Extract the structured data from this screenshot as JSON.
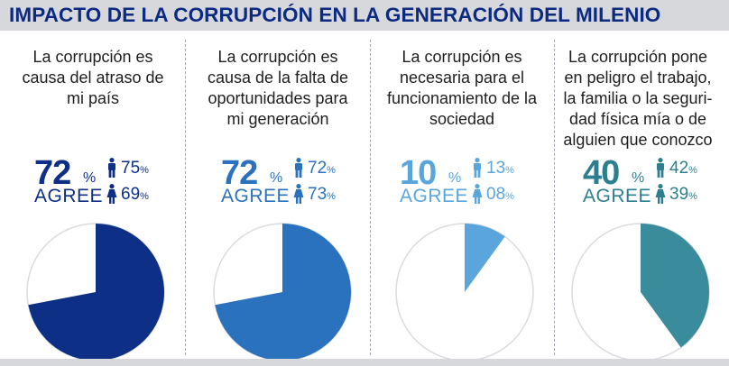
{
  "title": "IMPACTO DE LA CORRUPCIÓN EN LA GENERACIÓN DEL MILENIO",
  "percent_symbol": "%",
  "chart_data": [
    {
      "type": "pie",
      "statement_lines": [
        "La corrupción es",
        "causa del atraso  de",
        "mi país"
      ],
      "agree_value": "72",
      "agree_label": "AGREE",
      "male_value": "75",
      "female_value": "69",
      "values": [
        72,
        28
      ],
      "color": "#0d2f86",
      "text_color": "#0d2f86"
    },
    {
      "type": "pie",
      "statement_lines": [
        "La corrupción es",
        "causa de la falta de",
        "oportunidades para",
        "mi generación"
      ],
      "agree_value": "72",
      "agree_label": "AGREE",
      "male_value": "72",
      "female_value": "73",
      "values": [
        72,
        28
      ],
      "color": "#2a72bd",
      "text_color": "#2a72bd"
    },
    {
      "type": "pie",
      "statement_lines": [
        "La corrupción es",
        "necesaria para el",
        "funcionamiento de la",
        "sociedad"
      ],
      "agree_value": "10",
      "agree_label": "AGREE",
      "male_value": "13",
      "female_value": "08",
      "values": [
        10,
        90
      ],
      "color": "#5aa6dc",
      "text_color": "#5aa6dc"
    },
    {
      "type": "pie",
      "statement_lines": [
        "La corrupción pone",
        "en peligro el trabajo,",
        "la familia o la seguri-",
        "dad física mía o de",
        "alguien que conozco"
      ],
      "agree_value": "40",
      "agree_label": "AGREE",
      "male_value": "42",
      "female_value": "39",
      "values": [
        40,
        60
      ],
      "color": "#3a8c9c",
      "text_color": "#2d7f8f"
    }
  ]
}
